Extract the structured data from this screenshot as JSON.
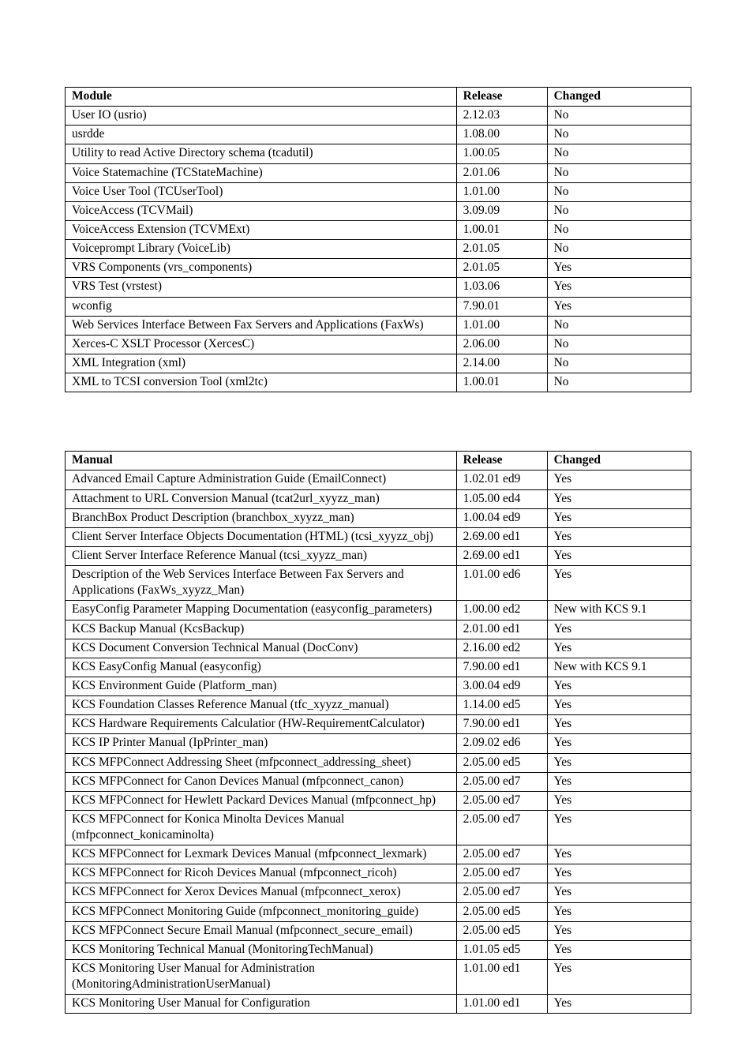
{
  "table1": {
    "columns": [
      "Module",
      "Release",
      "Changed"
    ],
    "col_widths_pct": [
      62.5,
      14.5,
      23
    ],
    "border_color": "#000000",
    "font_size_pt": 12,
    "rows": [
      [
        "User IO (usrio)",
        "2.12.03",
        "No"
      ],
      [
        "usrdde",
        "1.08.00",
        "No"
      ],
      [
        "Utility to read Active Directory schema (tcadutil)",
        "1.00.05",
        "No"
      ],
      [
        "Voice Statemachine (TCStateMachine)",
        "2.01.06",
        "No"
      ],
      [
        "Voice User Tool (TCUserTool)",
        "1.01.00",
        "No"
      ],
      [
        "VoiceAccess (TCVMail)",
        "3.09.09",
        "No"
      ],
      [
        "VoiceAccess Extension (TCVMExt)",
        "1.00.01",
        "No"
      ],
      [
        "Voiceprompt Library (VoiceLib)",
        "2.01.05",
        "No"
      ],
      [
        "VRS Components (vrs_components)",
        "2.01.05",
        "Yes"
      ],
      [
        "VRS Test (vrstest)",
        "1.03.06",
        "Yes"
      ],
      [
        "wconfig",
        "7.90.01",
        "Yes"
      ],
      [
        "Web Services Interface Between Fax Servers and Applications (FaxWs)",
        "1.01.00",
        "No"
      ],
      [
        "Xerces-C XSLT Processor (XercesC)",
        "2.06.00",
        "No"
      ],
      [
        "XML Integration (xml)",
        "2.14.00",
        "No"
      ],
      [
        "XML to TCSI conversion Tool (xml2tc)",
        "1.00.01",
        "No"
      ]
    ]
  },
  "table2": {
    "columns": [
      "Manual",
      "Release",
      "Changed"
    ],
    "col_widths_pct": [
      62.5,
      14.5,
      23
    ],
    "border_color": "#000000",
    "font_size_pt": 12,
    "rows": [
      [
        "Advanced Email Capture Administration Guide (EmailConnect)",
        "1.02.01 ed9",
        "Yes"
      ],
      [
        "Attachment to URL Conversion Manual (tcat2url_xyyzz_man)",
        "1.05.00 ed4",
        "Yes"
      ],
      [
        "BranchBox Product Description (branchbox_xyyzz_man)",
        "1.00.04 ed9",
        "Yes"
      ],
      [
        "Client Server Interface Objects Documentation (HTML) (tcsi_xyyzz_obj)",
        "2.69.00 ed1",
        "Yes"
      ],
      [
        "Client Server Interface Reference Manual (tcsi_xyyzz_man)",
        "2.69.00 ed1",
        "Yes"
      ],
      [
        "Description of the Web Services Interface Between Fax Servers and Applications (FaxWs_xyyzz_Man)",
        "1.01.00 ed6",
        "Yes"
      ],
      [
        "EasyConfig Parameter Mapping Documentation (easyconfig_parameters)",
        "1.00.00 ed2",
        "New with KCS 9.1"
      ],
      [
        "KCS Backup Manual (KcsBackup)",
        "2.01.00 ed1",
        "Yes"
      ],
      [
        "KCS Document Conversion Technical Manual (DocConv)",
        "2.16.00 ed2",
        "Yes"
      ],
      [
        "KCS EasyConfig Manual (easyconfig)",
        "7.90.00 ed1",
        "New with KCS 9.1"
      ],
      [
        "KCS Environment Guide (Platform_man)",
        "3.00.04 ed9",
        "Yes"
      ],
      [
        "KCS Foundation Classes Reference Manual (tfc_xyyzz_manual)",
        "1.14.00 ed5",
        "Yes"
      ],
      [
        "KCS Hardware Requirements Calculatior (HW-RequirementCalculator)",
        "7.90.00 ed1",
        "Yes"
      ],
      [
        "KCS IP Printer Manual (IpPrinter_man)",
        "2.09.02 ed6",
        "Yes"
      ],
      [
        "KCS MFPConnect Addressing Sheet (mfpconnect_addressing_sheet)",
        "2.05.00 ed5",
        "Yes"
      ],
      [
        "KCS MFPConnect for Canon Devices Manual (mfpconnect_canon)",
        "2.05.00 ed7",
        "Yes"
      ],
      [
        "KCS MFPConnect for Hewlett Packard Devices Manual (mfpconnect_hp)",
        "2.05.00 ed7",
        "Yes"
      ],
      [
        "KCS MFPConnect for Konica Minolta Devices Manual (mfpconnect_konicaminolta)",
        "2.05.00 ed7",
        "Yes"
      ],
      [
        "KCS MFPConnect for Lexmark Devices Manual (mfpconnect_lexmark)",
        "2.05.00 ed7",
        "Yes"
      ],
      [
        "KCS MFPConnect for Ricoh Devices Manual (mfpconnect_ricoh)",
        "2.05.00 ed7",
        "Yes"
      ],
      [
        "KCS MFPConnect for Xerox Devices Manual (mfpconnect_xerox)",
        "2.05.00 ed7",
        "Yes"
      ],
      [
        "KCS MFPConnect Monitoring Guide (mfpconnect_monitoring_guide)",
        "2.05.00 ed5",
        "Yes"
      ],
      [
        "KCS MFPConnect Secure Email Manual (mfpconnect_secure_email)",
        "2.05.00 ed5",
        "Yes"
      ],
      [
        "KCS Monitoring Technical Manual (MonitoringTechManual)",
        "1.01.05 ed5",
        "Yes"
      ],
      [
        "KCS Monitoring User Manual for Administration (MonitoringAdministrationUserManual)",
        "1.01.00 ed1",
        "Yes"
      ],
      [
        "KCS Monitoring User Manual for Configuration",
        "1.01.00 ed1",
        "Yes"
      ]
    ]
  }
}
